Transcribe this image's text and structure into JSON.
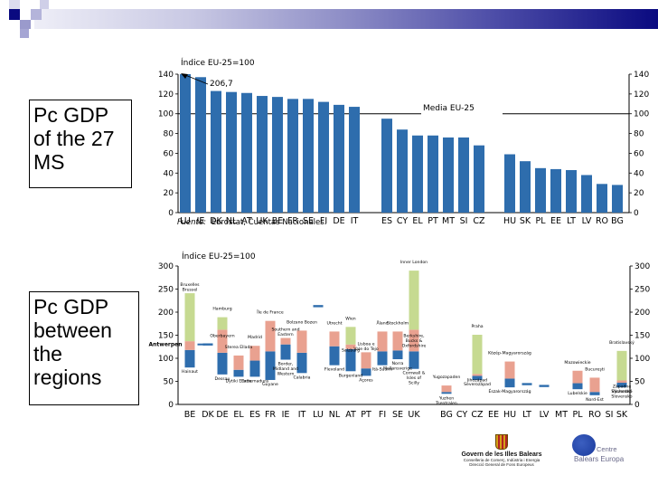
{
  "slide": {
    "box_countries": "Pc GDP of the 27 MS",
    "box_regions": "Pc GDP between the regions",
    "colors": {
      "bar": "#2e6dad",
      "upper": "#e9a190",
      "top": "#c6da91",
      "banner_dark": "#0a0a80"
    }
  },
  "footer": {
    "gov_title": "Govern de les Illes Balears",
    "gov_line1": "Conselleria de Comerç, Indústria i Energia",
    "gov_line2": "Direcció General de Fons Europeus",
    "cbe_line1": "Centre",
    "cbe_line2": "Balears Europa"
  },
  "chart_data": [
    {
      "type": "bar",
      "title": "Índice EU-25=100",
      "source": "Fuente: Eurostat, Cuentas Nacionales.",
      "source_prefix": "Fuente:",
      "source_text": "Eurostat, Cuentas Nacionales.",
      "reference_line": {
        "value": 100,
        "label": "Media EU-25"
      },
      "annotation": {
        "category": "LU",
        "text": "206,7",
        "value": 206.7
      },
      "ylim": [
        0,
        140
      ],
      "yticks": [
        0,
        20,
        40,
        60,
        80,
        100,
        120,
        140
      ],
      "groups": [
        {
          "categories": [
            "LU",
            "IE",
            "DK",
            "NL",
            "AT",
            "UK",
            "BE",
            "FR",
            "SE",
            "FI",
            "DE",
            "IT"
          ],
          "values": [
            206.7,
            137,
            123,
            122,
            121,
            118,
            117,
            115,
            115,
            112,
            109,
            107
          ]
        },
        {
          "categories": [
            "ES",
            "CY",
            "EL",
            "PT",
            "MT",
            "SI",
            "CZ"
          ],
          "values": [
            95,
            84,
            78,
            78,
            76,
            76,
            68
          ]
        },
        {
          "categories": [
            "HU",
            "SK",
            "PL",
            "EE",
            "LT",
            "LV",
            "RO",
            "BG"
          ],
          "values": [
            59,
            52,
            45,
            44,
            43,
            38,
            29,
            28
          ]
        }
      ]
    },
    {
      "type": "bar",
      "subtype": "floating-range",
      "title": "Índice EU-25=100",
      "ylim": [
        0,
        300
      ],
      "yticks": [
        0,
        50,
        100,
        150,
        200,
        250,
        300
      ],
      "legend_note": "blue = lowest region to ~25th range, salmon = mid range, green = capital outlier",
      "countries": [
        {
          "code": "BE",
          "min": 80,
          "mid": 118,
          "high": 137,
          "max": 241,
          "top_label": "Bruxelles Brussel",
          "bottom_label": "Hainaut",
          "side_label": "Antwerpen"
        },
        {
          "code": "DK",
          "single": 130
        },
        {
          "code": "DE",
          "min": 65,
          "mid": 112,
          "high": 162,
          "max": 189,
          "top_label": "Hamburg",
          "mid_label": "Oberbayern",
          "bottom_label": "Dessau"
        },
        {
          "code": "EL",
          "min": 60,
          "mid": 75,
          "high": 106,
          "top_label": "Sterea Ellada",
          "bottom_label": "Dytiki Ellada"
        },
        {
          "code": "ES",
          "min": 60,
          "mid": 95,
          "high": 127,
          "top_label": "Madrid",
          "bottom_label": "Extremadura"
        },
        {
          "code": "FR",
          "min": 53,
          "mid": 115,
          "high": 181,
          "top_label": "Île de France",
          "bottom_label": "Guyane"
        },
        {
          "code": "IE",
          "min": 97,
          "mid": 130,
          "high": 144,
          "top_label": "Southern and Eastern",
          "bottom_label": "Border, Midland and Western"
        },
        {
          "code": "IT",
          "min": 68,
          "mid": 112,
          "high": 160,
          "top_label": "Bolzano Bozen",
          "bottom_label": "Calabria"
        },
        {
          "code": "LU",
          "single": 213
        },
        {
          "code": "NL",
          "min": 85,
          "mid": 126,
          "high": 158,
          "top_label": "Utrecht",
          "bottom_label": "Flevoland"
        },
        {
          "code": "AT",
          "min": 72,
          "mid": 120,
          "high": 130,
          "max": 168,
          "top_label": "Wien",
          "mid_label": "Salzburg",
          "bottom_label": "Burgenland"
        },
        {
          "code": "PT",
          "min": 62,
          "mid": 78,
          "high": 113,
          "top_label": "Lisboa e Vale do Tejo",
          "bottom_label": "Açores"
        },
        {
          "code": "FI",
          "min": 85,
          "mid": 115,
          "high": 158,
          "top_label": "Åland",
          "bottom_label": "Itä-Suomi"
        },
        {
          "code": "SE",
          "min": 98,
          "mid": 117,
          "high": 158,
          "top_label": "Stockholm",
          "bottom_label": "Norra Mellansverige"
        },
        {
          "code": "UK",
          "min": 77,
          "mid": 115,
          "high": 162,
          "max": 290,
          "top_label": "Inner London",
          "mid_label": "Berkshire, Bucks & Oxfordshire",
          "bottom_label": "Cornwall & Isles of Scilly"
        },
        {
          "code": "BG",
          "min": 23,
          "mid": 27,
          "high": 41,
          "top_label": "Yugozapaden",
          "bottom_label": "Yuzhen Tsentralen"
        },
        {
          "code": "CY",
          "single": null
        },
        {
          "code": "CZ",
          "min": 53,
          "mid": 62,
          "high": 66,
          "max": 151,
          "top_label": "Praha",
          "mid_label": "Jihozápad",
          "bottom_label": "Severozápad"
        },
        {
          "code": "EE",
          "single": null
        },
        {
          "code": "HU",
          "min": 37,
          "mid": 56,
          "high": 93,
          "top_label": "Közép-Magyarország",
          "bottom_label": "Észak-Magyarország"
        },
        {
          "code": "LT",
          "single": 44
        },
        {
          "code": "LV",
          "single": 40
        },
        {
          "code": "MT",
          "single": null
        },
        {
          "code": "PL",
          "min": 33,
          "mid": 46,
          "high": 73,
          "top_label": "Mazowieckie",
          "bottom_label": "Lubelskie"
        },
        {
          "code": "RO",
          "min": 20,
          "mid": 27,
          "high": 58,
          "top_label": "Bucureşti",
          "bottom_label": "Nord-Est"
        },
        {
          "code": "SI",
          "single": null
        },
        {
          "code": "SK",
          "min": 37,
          "mid": 47,
          "high": 52,
          "max": 116,
          "top_label": "Bratislavský",
          "mid_label": "Západné Slovensko",
          "bottom_label": "Východné Slovensko"
        }
      ]
    }
  ]
}
